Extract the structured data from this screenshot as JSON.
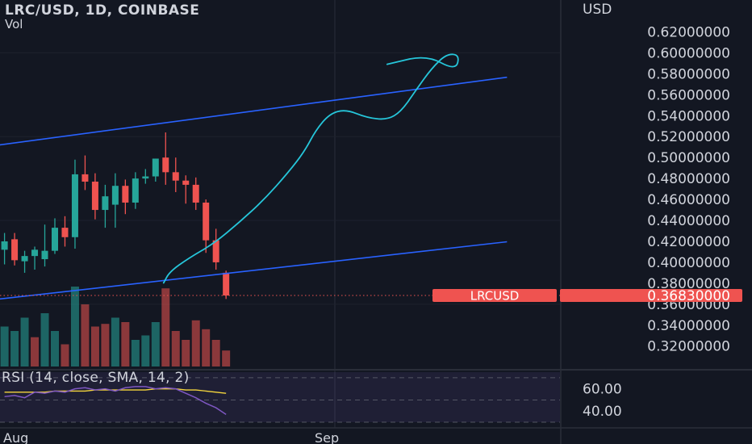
{
  "header": {
    "title": "LRC/USD, 1D, COINBASE",
    "volume_label": "Vol"
  },
  "currency": "USD",
  "rsi_label": "RSI (14, close, SMA, 14, 2)",
  "colors": {
    "bg": "#131722",
    "up": "#26a69a",
    "down": "#ef5350",
    "trend": "#2962ff",
    "drawing": "#26c6da",
    "rsi": "#7e57c2",
    "rsi_ma": "#f5d63d"
  },
  "chart_data": {
    "type": "candlestick",
    "title": "LRC/USD, 1D, COINBASE",
    "x_ticks": [
      "Aug",
      "Sep"
    ],
    "y_ticks": [
      "0.62000000",
      "0.60000000",
      "0.58000000",
      "0.56000000",
      "0.54000000",
      "0.52000000",
      "0.50000000",
      "0.48000000",
      "0.46000000",
      "0.44000000",
      "0.42000000",
      "0.40000000",
      "0.38000000",
      "0.36000000",
      "0.34000000",
      "0.32000000"
    ],
    "ylim": [
      0.309,
      0.635
    ],
    "last_price": {
      "symbol": "LRCUSD",
      "value": "0.36830000",
      "num": 0.3683
    },
    "candles": [
      {
        "o": 0.412,
        "h": 0.428,
        "l": 0.398,
        "c": 0.42
      },
      {
        "o": 0.422,
        "h": 0.428,
        "l": 0.397,
        "c": 0.402
      },
      {
        "o": 0.401,
        "h": 0.411,
        "l": 0.39,
        "c": 0.406
      },
      {
        "o": 0.406,
        "h": 0.415,
        "l": 0.393,
        "c": 0.412
      },
      {
        "o": 0.403,
        "h": 0.436,
        "l": 0.396,
        "c": 0.411
      },
      {
        "o": 0.411,
        "h": 0.442,
        "l": 0.408,
        "c": 0.433
      },
      {
        "o": 0.433,
        "h": 0.444,
        "l": 0.415,
        "c": 0.424
      },
      {
        "o": 0.424,
        "h": 0.498,
        "l": 0.413,
        "c": 0.484
      },
      {
        "o": 0.484,
        "h": 0.502,
        "l": 0.469,
        "c": 0.477
      },
      {
        "o": 0.477,
        "h": 0.485,
        "l": 0.441,
        "c": 0.45
      },
      {
        "o": 0.45,
        "h": 0.474,
        "l": 0.433,
        "c": 0.463
      },
      {
        "o": 0.455,
        "h": 0.485,
        "l": 0.433,
        "c": 0.473
      },
      {
        "o": 0.473,
        "h": 0.479,
        "l": 0.446,
        "c": 0.457
      },
      {
        "o": 0.457,
        "h": 0.486,
        "l": 0.451,
        "c": 0.48
      },
      {
        "o": 0.48,
        "h": 0.489,
        "l": 0.475,
        "c": 0.482
      },
      {
        "o": 0.482,
        "h": 0.499,
        "l": 0.477,
        "c": 0.499
      },
      {
        "o": 0.5,
        "h": 0.524,
        "l": 0.474,
        "c": 0.486
      },
      {
        "o": 0.486,
        "h": 0.5,
        "l": 0.467,
        "c": 0.478
      },
      {
        "o": 0.478,
        "h": 0.483,
        "l": 0.456,
        "c": 0.474
      },
      {
        "o": 0.474,
        "h": 0.481,
        "l": 0.45,
        "c": 0.457
      },
      {
        "o": 0.457,
        "h": 0.46,
        "l": 0.409,
        "c": 0.421
      },
      {
        "o": 0.421,
        "h": 0.432,
        "l": 0.393,
        "c": 0.4
      },
      {
        "o": 0.39,
        "h": 0.392,
        "l": 0.365,
        "c": 0.3683
      }
    ],
    "volume": [
      {
        "v": 0.45,
        "dir": "up"
      },
      {
        "v": 0.4,
        "dir": "up"
      },
      {
        "v": 0.55,
        "dir": "up"
      },
      {
        "v": 0.33,
        "dir": "down"
      },
      {
        "v": 0.6,
        "dir": "up"
      },
      {
        "v": 0.4,
        "dir": "up"
      },
      {
        "v": 0.25,
        "dir": "down"
      },
      {
        "v": 0.9,
        "dir": "up"
      },
      {
        "v": 0.7,
        "dir": "down"
      },
      {
        "v": 0.45,
        "dir": "down"
      },
      {
        "v": 0.48,
        "dir": "down"
      },
      {
        "v": 0.55,
        "dir": "up"
      },
      {
        "v": 0.5,
        "dir": "down"
      },
      {
        "v": 0.3,
        "dir": "up"
      },
      {
        "v": 0.35,
        "dir": "up"
      },
      {
        "v": 0.5,
        "dir": "up"
      },
      {
        "v": 0.88,
        "dir": "down"
      },
      {
        "v": 0.4,
        "dir": "down"
      },
      {
        "v": 0.3,
        "dir": "down"
      },
      {
        "v": 0.52,
        "dir": "down"
      },
      {
        "v": 0.42,
        "dir": "down"
      },
      {
        "v": 0.3,
        "dir": "down"
      },
      {
        "v": 0.18,
        "dir": "down"
      }
    ],
    "rsi": {
      "ticks": [
        "60.00",
        "40.00"
      ],
      "ylim": [
        30,
        75
      ],
      "levels": [
        70,
        50,
        30
      ],
      "values": [
        53,
        54,
        52,
        57,
        56,
        58,
        57,
        60,
        61,
        59,
        60,
        58,
        61,
        62,
        62,
        60,
        61,
        60,
        56,
        52,
        47,
        43,
        37
      ],
      "ma": [
        57,
        57,
        57,
        57,
        57,
        58,
        58,
        58,
        58,
        59,
        59,
        59,
        59,
        59,
        59,
        60,
        60,
        60,
        59,
        59,
        58,
        57,
        56
      ]
    },
    "trendlines": [
      {
        "name": "upper",
        "p1": {
          "i": -7.9,
          "price": 0.5026
        },
        "p2": {
          "i": 49.9,
          "price": 0.5767
        }
      },
      {
        "name": "lower",
        "p1": {
          "i": -7.9,
          "price": 0.3569
        },
        "p2": {
          "i": 49.9,
          "price": 0.4196
        }
      }
    ],
    "drawing_path": [
      {
        "i": 15.8,
        "price": 0.3803
      },
      {
        "i": 16.4,
        "price": 0.391
      },
      {
        "i": 18.3,
        "price": 0.404
      },
      {
        "i": 20.8,
        "price": 0.418
      },
      {
        "i": 23.3,
        "price": 0.438
      },
      {
        "i": 25.8,
        "price": 0.46
      },
      {
        "i": 28.2,
        "price": 0.486
      },
      {
        "i": 29.8,
        "price": 0.506
      },
      {
        "i": 30.9,
        "price": 0.526
      },
      {
        "i": 32.3,
        "price": 0.542
      },
      {
        "i": 33.9,
        "price": 0.546
      },
      {
        "i": 36.0,
        "price": 0.538
      },
      {
        "i": 38.0,
        "price": 0.536
      },
      {
        "i": 39.4,
        "price": 0.544
      },
      {
        "i": 40.9,
        "price": 0.565
      },
      {
        "i": 42.4,
        "price": 0.585
      },
      {
        "i": 43.9,
        "price": 0.599
      },
      {
        "i": 45.2,
        "price": 0.598
      },
      {
        "i": 44.8,
        "price": 0.583
      },
      {
        "i": 41.9,
        "price": 0.598
      },
      {
        "i": 38.0,
        "price": 0.589
      }
    ]
  }
}
